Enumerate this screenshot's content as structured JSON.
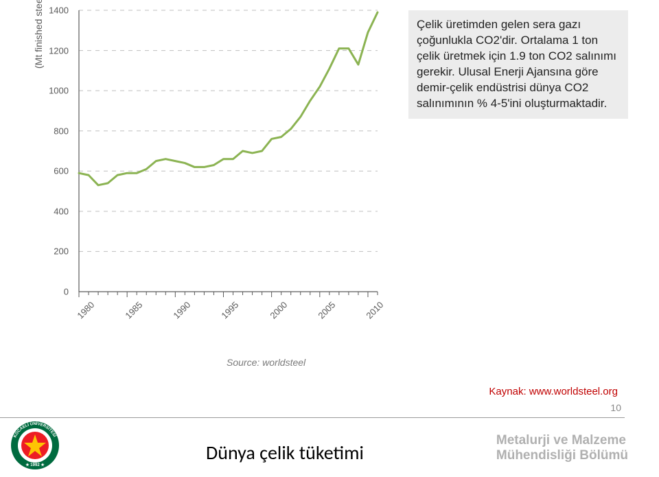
{
  "chart": {
    "type": "line",
    "y_axis_label": "(Mt finished steel products)",
    "x_ticks": [
      1980,
      1985,
      1990,
      1995,
      2000,
      2005,
      2010
    ],
    "y_ticks": [
      0,
      200,
      400,
      600,
      800,
      1000,
      1200,
      1400
    ],
    "xlim": [
      1980,
      2011
    ],
    "ylim": [
      0,
      1400
    ],
    "line_color": "#8bb352",
    "line_width": 3,
    "grid_color": "#bfbfbf",
    "axis_color": "#595959",
    "tick_label_fontsize": 13,
    "axis_label_fontsize": 14,
    "background_color": "#ffffff",
    "data": [
      {
        "x": 1980,
        "y": 590
      },
      {
        "x": 1981,
        "y": 580
      },
      {
        "x": 1982,
        "y": 530
      },
      {
        "x": 1983,
        "y": 540
      },
      {
        "x": 1984,
        "y": 580
      },
      {
        "x": 1985,
        "y": 590
      },
      {
        "x": 1986,
        "y": 590
      },
      {
        "x": 1987,
        "y": 610
      },
      {
        "x": 1988,
        "y": 650
      },
      {
        "x": 1989,
        "y": 660
      },
      {
        "x": 1990,
        "y": 650
      },
      {
        "x": 1991,
        "y": 640
      },
      {
        "x": 1992,
        "y": 620
      },
      {
        "x": 1993,
        "y": 620
      },
      {
        "x": 1994,
        "y": 630
      },
      {
        "x": 1995,
        "y": 660
      },
      {
        "x": 1996,
        "y": 660
      },
      {
        "x": 1997,
        "y": 700
      },
      {
        "x": 1998,
        "y": 690
      },
      {
        "x": 1999,
        "y": 700
      },
      {
        "x": 2000,
        "y": 760
      },
      {
        "x": 2001,
        "y": 770
      },
      {
        "x": 2002,
        "y": 810
      },
      {
        "x": 2003,
        "y": 870
      },
      {
        "x": 2004,
        "y": 950
      },
      {
        "x": 2005,
        "y": 1020
      },
      {
        "x": 2006,
        "y": 1110
      },
      {
        "x": 2007,
        "y": 1210
      },
      {
        "x": 2008,
        "y": 1210
      },
      {
        "x": 2009,
        "y": 1130
      },
      {
        "x": 2010,
        "y": 1290
      },
      {
        "x": 2011,
        "y": 1390
      }
    ],
    "source_label": "Source: worldsteel"
  },
  "info_box": {
    "text": "Çelik üretimden gelen sera gazı çoğunlukla CO2'dir. Ortalama 1 ton çelik üretmek için 1.9 ton CO2 salınımı gerekir. Ulusal Enerji Ajansına göre demir-çelik endüstrisi dünya CO2 salınımının % 4-5'ini oluşturmaktadir.",
    "background": "#ececec",
    "fontsize": 17,
    "color": "#222222"
  },
  "caption": "Dünya çelik tüketimi",
  "kaynak": "Kaynak: www.worldsteel.org",
  "page_number": "10",
  "department": {
    "line1": "Metalurji ve Malzeme",
    "line2": "Mühendisliği Bölümü"
  },
  "logo": {
    "outer_color": "#006b3f",
    "inner_color": "#ed1c24",
    "text": "KOCAELİ ÜNİVERSİTESİ",
    "year": "1992"
  }
}
